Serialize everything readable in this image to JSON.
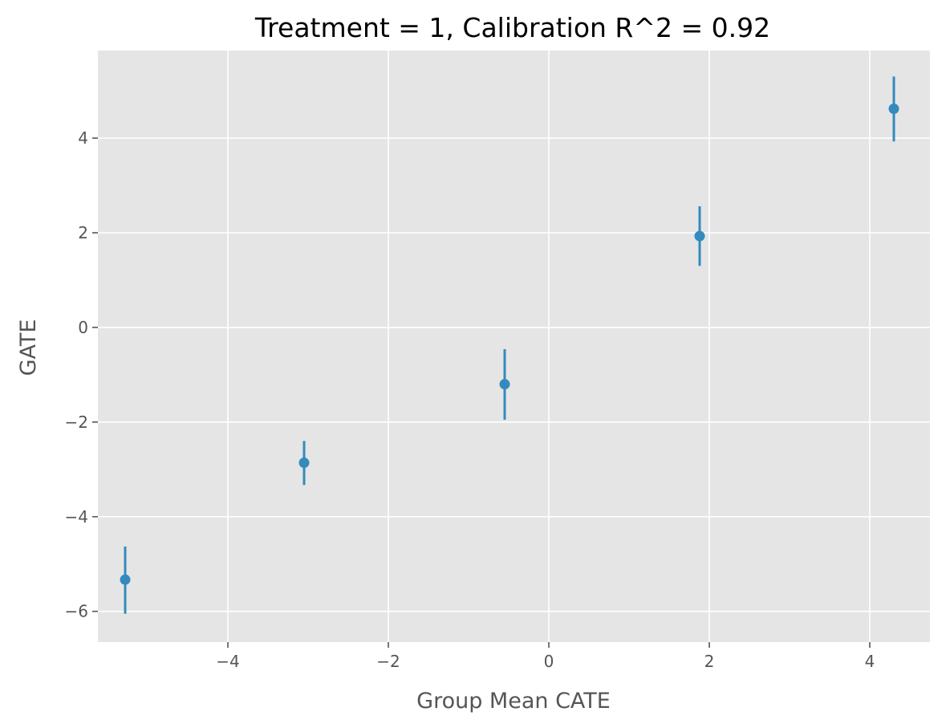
{
  "chart_data": {
    "type": "scatter",
    "title": "Treatment = 1, Calibration R^2 = 0.92",
    "xlabel": "Group Mean CATE",
    "ylabel": "GATE",
    "xlim": [
      -5.62,
      4.75
    ],
    "ylim": [
      -6.65,
      5.85
    ],
    "xticks": [
      -4,
      -2,
      0,
      2,
      4
    ],
    "yticks": [
      -6,
      -4,
      -2,
      0,
      2,
      4
    ],
    "grid": true,
    "background": "#e5e5e5",
    "grid_color": "#ffffff",
    "marker_color": "#348abd",
    "points": [
      {
        "x": -5.28,
        "y": -5.33,
        "err_low": -6.05,
        "err_high": -4.63
      },
      {
        "x": -3.05,
        "y": -2.86,
        "err_low": -3.33,
        "err_high": -2.4
      },
      {
        "x": -0.55,
        "y": -1.2,
        "err_low": -1.95,
        "err_high": -0.46
      },
      {
        "x": 1.88,
        "y": 1.93,
        "err_low": 1.3,
        "err_high": 2.56
      },
      {
        "x": 4.3,
        "y": 4.62,
        "err_low": 3.93,
        "err_high": 5.3
      }
    ]
  }
}
